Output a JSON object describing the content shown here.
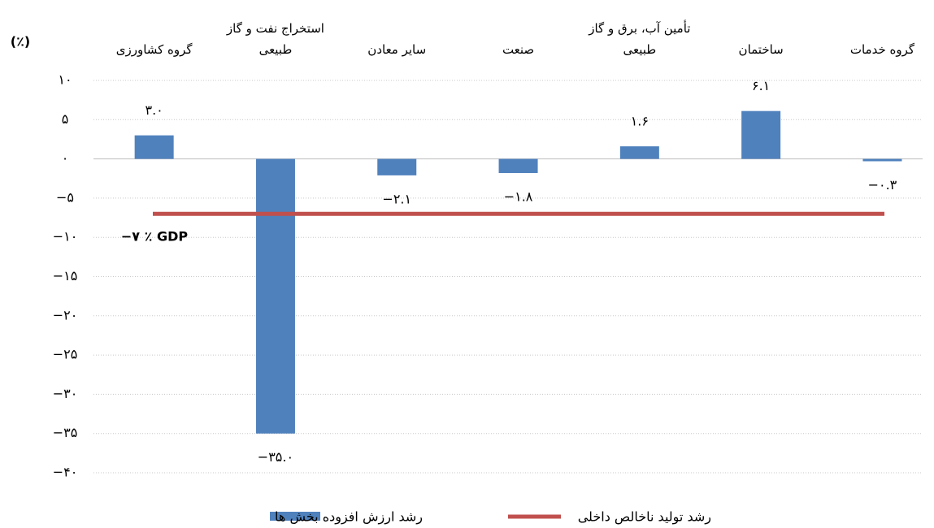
{
  "chart_data": {
    "type": "bar",
    "y_label": "(٪)",
    "categories": [
      "گروه کشاورزی",
      "استخراج نفت و گاز طبیعی",
      "سایر معادن",
      "صنعت",
      "تأمین آب، برق و گاز طبیعی",
      "ساختمان",
      "گروه خدمات"
    ],
    "series": [
      {
        "name": "رشد ارزش افزوده بخش ها",
        "color": "#4f81bd",
        "values": [
          3.0,
          -35.0,
          -2.1,
          -1.8,
          1.6,
          6.1,
          -0.3
        ],
        "value_labels": [
          "۳.۰",
          "−۳۵.۰",
          "−۲.۱",
          "−۱.۸",
          "۱.۶",
          "۶.۱",
          "−۰.۳"
        ]
      }
    ],
    "reference_line": {
      "name": "رشد تولید ناخالص داخلی",
      "color": "#c0504d",
      "value": -7,
      "label": "−۷ ٪ GDP"
    },
    "ylim": [
      -40,
      10
    ],
    "yticks": [
      {
        "value": 10,
        "label": "۱۰"
      },
      {
        "value": 5,
        "label": "۵"
      },
      {
        "value": 0,
        "label": "۰"
      },
      {
        "value": -5,
        "label": "−۵"
      },
      {
        "value": -10,
        "label": "−۱۰"
      },
      {
        "value": -15,
        "label": "−۱۵"
      },
      {
        "value": -20,
        "label": "−۲۰"
      },
      {
        "value": -25,
        "label": "−۲۵"
      },
      {
        "value": -30,
        "label": "−۳۰"
      },
      {
        "value": -35,
        "label": "−۳۵"
      },
      {
        "value": -40,
        "label": "−۴۰"
      }
    ],
    "grid": true
  }
}
